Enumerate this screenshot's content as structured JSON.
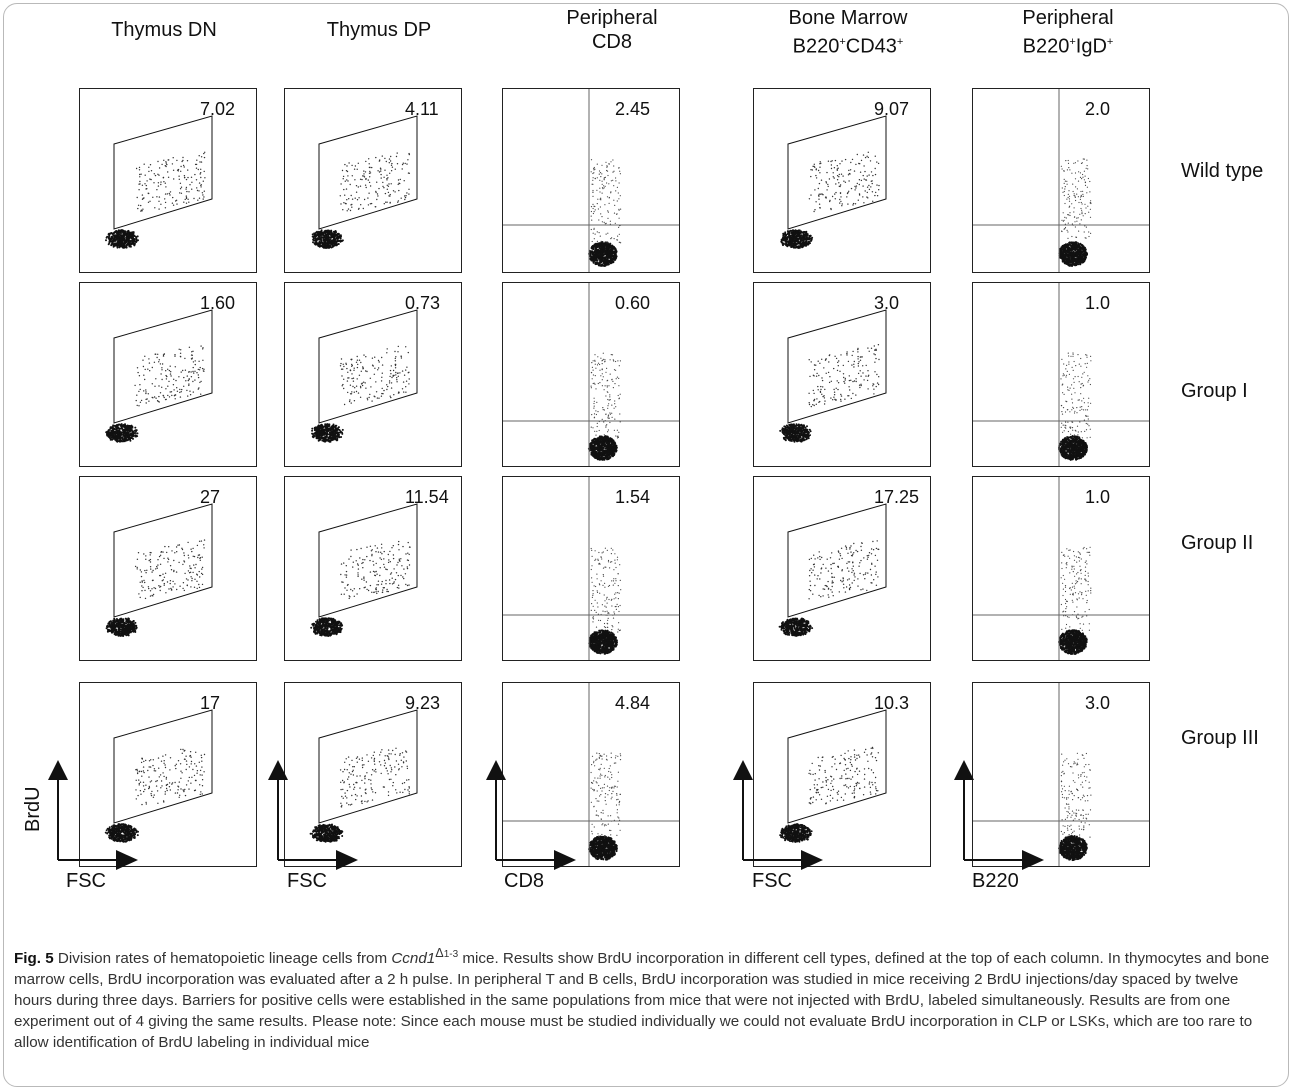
{
  "columns": [
    {
      "line1": "Thymus DN",
      "line2": "",
      "line2_sup1": "",
      "line2_mid": "",
      "line2_sup2": ""
    },
    {
      "line1": "Thymus DP",
      "line2": "",
      "line2_sup1": "",
      "line2_mid": "",
      "line2_sup2": ""
    },
    {
      "line1": "Peripheral",
      "line2": "CD8",
      "line2_sup1": "",
      "line2_mid": "",
      "line2_sup2": ""
    },
    {
      "line1": "Bone Marrow",
      "line2": "B220",
      "line2_sup1": "+",
      "line2_mid": "CD43",
      "line2_sup2": "+"
    },
    {
      "line1": "Peripheral",
      "line2": "B220",
      "line2_sup1": "+",
      "line2_mid": "IgD",
      "line2_sup2": "+"
    }
  ],
  "rows": [
    "Wild type",
    "Group I",
    "Group II",
    "Group III"
  ],
  "percentages": [
    [
      "7.02",
      "4.11",
      "2.45",
      "9.07",
      "2.0"
    ],
    [
      "1.60",
      "0.73",
      "0.60",
      "3.0",
      "1.0"
    ],
    [
      "27",
      "11.54",
      "1.54",
      "17.25",
      "1.0"
    ],
    [
      "17",
      "9.23",
      "4.84",
      "10.3",
      "3.0"
    ]
  ],
  "axes": {
    "y_label": "BrdU",
    "x_labels": [
      "FSC",
      "FSC",
      "CD8",
      "FSC",
      "B220"
    ]
  },
  "caption": {
    "fig": "Fig. 5",
    "text1": " Division rates of hematopoietic lineage cells from ",
    "gene": "Ccnd1",
    "sup_delta": "Δ",
    "sup_range": "1-3",
    "text2": " mice. Results show BrdU incorporation in different cell types, defined at the top of each column. In thymocytes and bone marrow cells, BrdU incorporation was evaluated after a 2 h pulse. In peripheral T and B cells, BrdU incorporation was studied in mice receiving 2 BrdU injections/day spaced by twelve hours during three days. Barriers for positive cells were established in the same populations from mice that were not injected with BrdU, labeled simultaneously. Results are from one experiment out of 4 giving the same results. Please note: Since each mouse must be studied individually we could not evaluate BrdU incorporation in CLP or LSKs, which are too rare to allow identification of BrdU labeling in individual mice"
  }
}
